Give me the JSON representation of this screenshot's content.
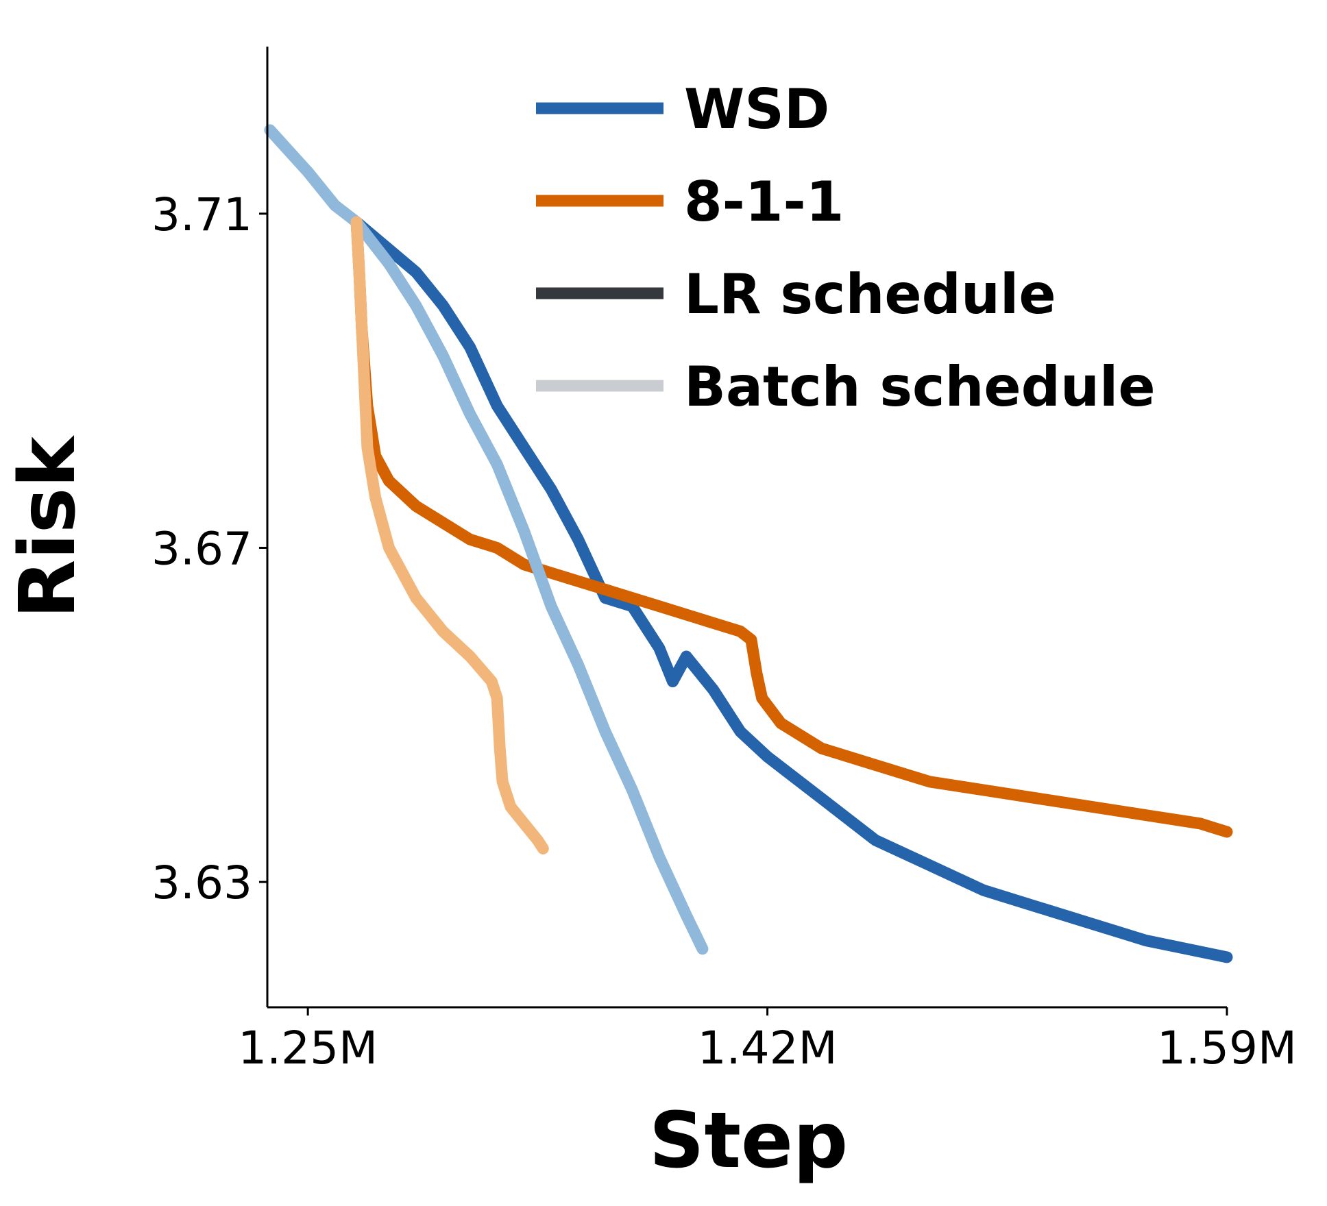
{
  "chart_data": {
    "type": "line",
    "xlabel": "Step",
    "ylabel": "Risk",
    "xlim": [
      1235000,
      1590000
    ],
    "ylim": [
      3.615,
      3.73
    ],
    "x_ticks": [
      {
        "value": 1250000,
        "label": "1.25M"
      },
      {
        "value": 1420000,
        "label": "1.42M"
      },
      {
        "value": 1590000,
        "label": "1.59M"
      }
    ],
    "y_ticks": [
      {
        "value": 3.71,
        "label": "3.71"
      },
      {
        "value": 3.67,
        "label": "3.67"
      },
      {
        "value": 3.63,
        "label": "3.63"
      }
    ],
    "grid": false,
    "legend": {
      "placement": "top-right",
      "entries": [
        {
          "label": "WSD",
          "color": "#2563aa"
        },
        {
          "label": "8-1-1",
          "color": "#d46200"
        },
        {
          "label": "LR schedule",
          "color": "#35393d"
        },
        {
          "label": "Batch schedule",
          "color": "#c9ccd0"
        }
      ]
    },
    "series": [
      {
        "name": "WSD",
        "group": "LR schedule",
        "color": "#2563aa",
        "x": [
          1268000,
          1290000,
          1300000,
          1310000,
          1320000,
          1330000,
          1340000,
          1350000,
          1360000,
          1370000,
          1380000,
          1385000,
          1390000,
          1400000,
          1410000,
          1420000,
          1440000,
          1460000,
          1480000,
          1500000,
          1520000,
          1540000,
          1560000,
          1575000,
          1590000
        ],
        "y": [
          3.709,
          3.703,
          3.699,
          3.694,
          3.687,
          3.682,
          3.677,
          3.671,
          3.664,
          3.663,
          3.658,
          3.654,
          3.657,
          3.653,
          3.648,
          3.645,
          3.64,
          3.635,
          3.632,
          3.629,
          3.627,
          3.625,
          3.623,
          3.622,
          3.621
        ]
      },
      {
        "name": "8-1-1",
        "group": "LR schedule",
        "color": "#d46200",
        "x": [
          1268000,
          1269000,
          1270000,
          1272000,
          1275000,
          1280000,
          1290000,
          1300000,
          1310000,
          1320000,
          1330000,
          1340000,
          1350000,
          1360000,
          1370000,
          1380000,
          1390000,
          1400000,
          1410000,
          1414000,
          1416000,
          1418000,
          1425000,
          1440000,
          1460000,
          1480000,
          1500000,
          1520000,
          1540000,
          1560000,
          1580000,
          1590000
        ],
        "y": [
          3.709,
          3.703,
          3.696,
          3.687,
          3.681,
          3.678,
          3.675,
          3.673,
          3.671,
          3.67,
          3.668,
          3.667,
          3.666,
          3.665,
          3.664,
          3.663,
          3.662,
          3.661,
          3.66,
          3.659,
          3.655,
          3.652,
          3.649,
          3.646,
          3.644,
          3.642,
          3.641,
          3.64,
          3.639,
          3.638,
          3.637,
          3.636
        ]
      },
      {
        "name": "WSD",
        "group": "Batch schedule",
        "color": "#8fb8da",
        "x": [
          1236000,
          1250000,
          1260000,
          1268000,
          1280000,
          1290000,
          1300000,
          1310000,
          1320000,
          1330000,
          1340000,
          1350000,
          1360000,
          1370000,
          1380000,
          1390000,
          1396000
        ],
        "y": [
          3.72,
          3.715,
          3.711,
          3.709,
          3.704,
          3.699,
          3.693,
          3.686,
          3.68,
          3.672,
          3.663,
          3.656,
          3.648,
          3.641,
          3.633,
          3.626,
          3.622
        ]
      },
      {
        "name": "8-1-1",
        "group": "Batch schedule",
        "color": "#f3b67a",
        "x": [
          1268000,
          1269000,
          1270000,
          1271000,
          1272000,
          1275000,
          1280000,
          1290000,
          1300000,
          1310000,
          1318000,
          1320000,
          1321000,
          1322000,
          1325000,
          1330000,
          1335000,
          1337000
        ],
        "y": [
          3.709,
          3.703,
          3.696,
          3.689,
          3.682,
          3.676,
          3.67,
          3.664,
          3.66,
          3.657,
          3.654,
          3.652,
          3.646,
          3.642,
          3.639,
          3.637,
          3.635,
          3.634
        ]
      }
    ]
  }
}
